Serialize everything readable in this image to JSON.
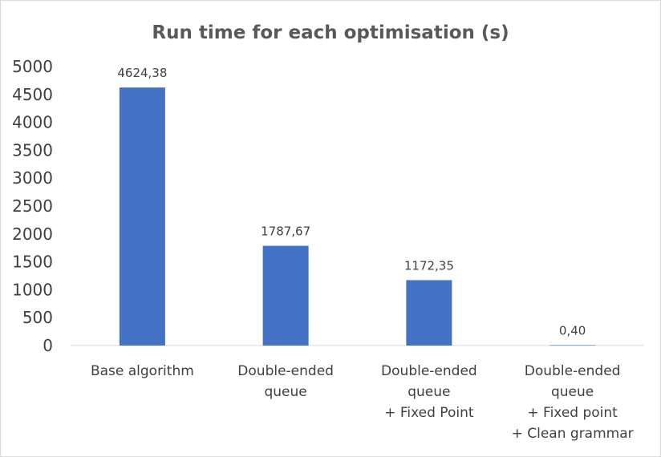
{
  "chart_data": {
    "type": "bar",
    "title": "Run time for each optimisation (s)",
    "xlabel": "",
    "ylabel": "",
    "categories": [
      [
        "Base algorithm"
      ],
      [
        "Double-ended",
        "queue"
      ],
      [
        "Double-ended",
        "queue",
        "+ Fixed Point"
      ],
      [
        "Double-ended",
        "queue",
        "+ Fixed point",
        "+ Clean grammar"
      ]
    ],
    "values": [
      4624.38,
      1787.67,
      1172.35,
      0.4
    ],
    "data_labels": [
      "4624,38",
      "1787,67",
      "1172,35",
      "0,40"
    ],
    "y_ticks": [
      {
        "value": 0,
        "label": "0"
      },
      {
        "value": 500,
        "label": "500"
      },
      {
        "value": 1000,
        "label": "1000"
      },
      {
        "value": 1500,
        "label": "1500"
      },
      {
        "value": 2000,
        "label": "2000"
      },
      {
        "value": 2500,
        "label": "2500"
      },
      {
        "value": 3000,
        "label": "3000"
      },
      {
        "value": 3500,
        "label": "3500"
      },
      {
        "value": 4000,
        "label": "4000"
      },
      {
        "value": 4500,
        "label": "4500"
      },
      {
        "value": 5000,
        "label": "5000"
      }
    ],
    "ylim": [
      0,
      5000
    ],
    "grid": false,
    "legend": "none",
    "bar_color": "#4472C4"
  }
}
